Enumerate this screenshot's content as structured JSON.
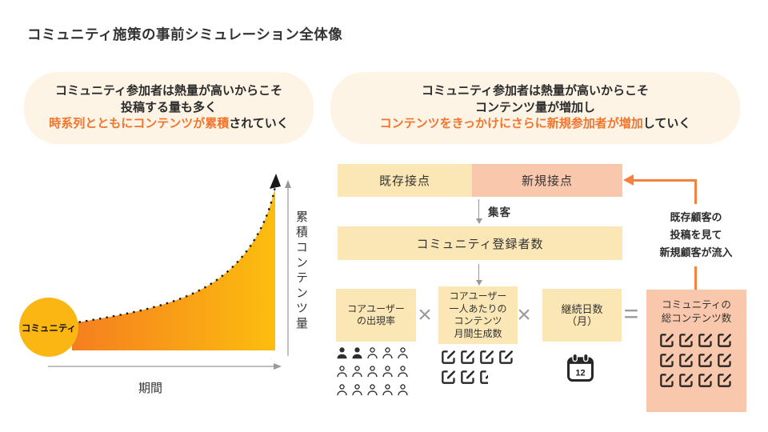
{
  "page": {
    "title": "コミュニティ施策の事前シミュレーション全体像"
  },
  "colors": {
    "banner_bg": "#FDF4E5",
    "highlight_orange": "#F2742D",
    "cream_box": "#FBE7B6",
    "salmon_box": "#F9C8AC",
    "connector_orange": "#F8803E",
    "chart_gradient_left": "#F57E20",
    "chart_gradient_right": "#FCBD0E",
    "bubble_yellow": "#FBB614"
  },
  "banners": {
    "left": {
      "line1": "コミュニティ参加者は熱量が高いからこそ",
      "line2": "投稿する量も多く",
      "line3_highlight": "時系列とともにコンテンツが累積",
      "line3_rest": "されていく"
    },
    "right": {
      "line1": "コミュニティ参加者は熱量が高いからこそ",
      "line2": "コンテンツ量が増加し",
      "line3_highlight": "コンテンツをきっかけにさらに新規参加者が増加",
      "line3_rest": "していく"
    }
  },
  "chart": {
    "bubble_label": "コミュニティ",
    "y_axis_label": "累積コンテンツ量",
    "x_axis_label": "期間"
  },
  "flow": {
    "existing_touchpoint": "既存接点",
    "new_touchpoint": "新規接点",
    "attract_label": "集客",
    "registrants_label": "コミュニティ登録者数",
    "multiply": "×",
    "equals": "=",
    "factor_core_rate": {
      "lines": [
        "コアユーザー",
        "の出現率"
      ]
    },
    "factor_content_per_user": {
      "lines": [
        "コアユーザー",
        "一人あたりの",
        "コンテンツ",
        "月間生成数"
      ]
    },
    "factor_duration": {
      "lines": [
        "継続日数",
        "（月）"
      ]
    },
    "result_total": {
      "lines": [
        "コミュニティの",
        "総コンテンツ数"
      ]
    },
    "feedback": {
      "lines": [
        "既存顧客の",
        "投稿を見て",
        "新規顧客が流入"
      ]
    },
    "icons": {
      "people": {
        "total": 15,
        "filled": 2,
        "per_row": 5
      },
      "edits_factor2": {
        "full": 6,
        "half": 1,
        "per_row": 4
      },
      "calendar_value": "12",
      "edits_result": {
        "total": 12,
        "per_row": 4
      }
    }
  }
}
